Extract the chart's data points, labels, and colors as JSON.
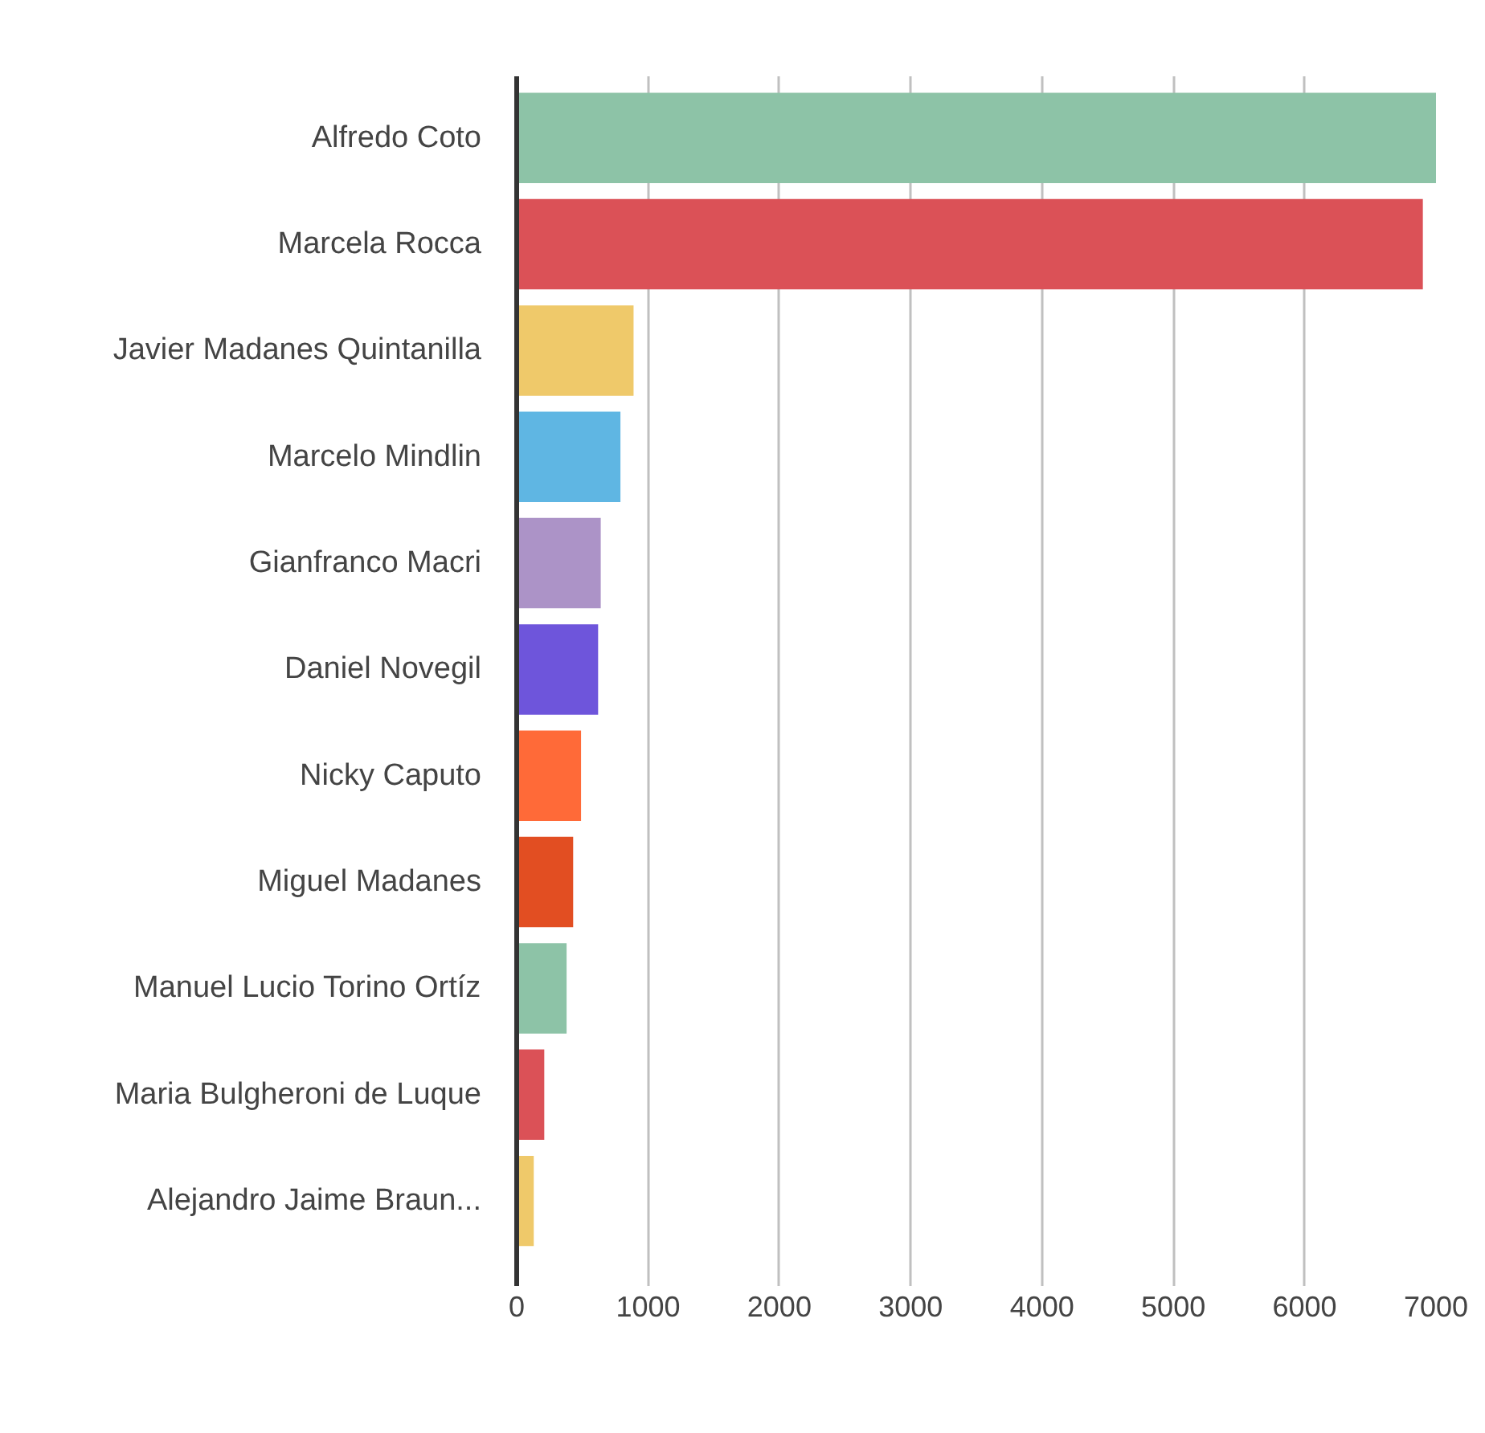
{
  "chart_data": {
    "type": "bar",
    "orientation": "horizontal",
    "categories": [
      "Alfredo Coto",
      "Marcela Rocca",
      "Javier Madanes Quintanilla",
      "Marcelo Mindlin",
      "Gianfranco Macri",
      "Daniel Novegil",
      "Nicky Caputo",
      "Miguel Madanes",
      "Manuel Lucio Torino Ortíz",
      "Maria Bulgheroni de Luque",
      "Alejandro Jaime Braun..."
    ],
    "values": [
      7000,
      6900,
      890,
      790,
      640,
      620,
      490,
      430,
      380,
      210,
      130
    ],
    "colors": [
      "#8dc3a7",
      "#db5157",
      "#efc96a",
      "#5fb6e3",
      "#ac93c7",
      "#6e55db",
      "#ff6a38",
      "#e24e22",
      "#8dc3a7",
      "#db5157",
      "#efc96a"
    ],
    "xlim": [
      0,
      7000
    ],
    "xticks": [
      0,
      1000,
      2000,
      3000,
      4000,
      5000,
      6000,
      7000
    ],
    "grid": "x"
  }
}
